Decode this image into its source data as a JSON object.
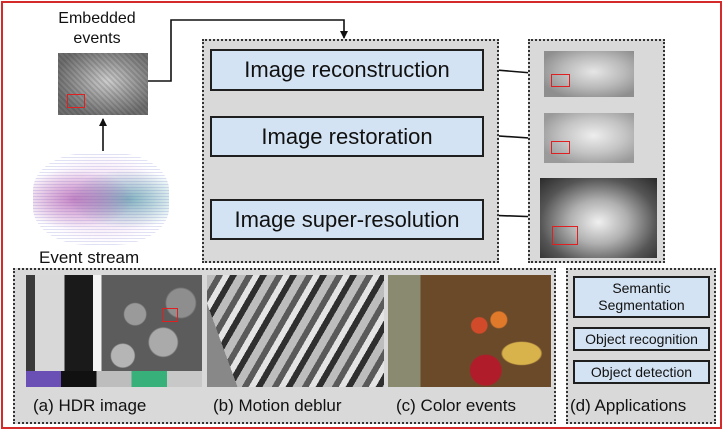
{
  "inputs": {
    "embedded_label": "Embedded\nevents",
    "stream_label": "Event stream"
  },
  "pipeline": {
    "steps": [
      "Image reconstruction",
      "Image restoration",
      "Image super-resolution"
    ]
  },
  "applications": {
    "captions": [
      "(a) HDR image",
      "(b) Motion deblur",
      "(c) Color events",
      "(d) Applications"
    ],
    "tasks": [
      "Semantic\nSegmentation",
      "Object recognition",
      "Object detection"
    ]
  },
  "colors": {
    "frame_border": "#d42a2a",
    "panel_bg": "#d9d9d9",
    "box_fill": "#d4e3f3",
    "highlight": "#e02020"
  }
}
